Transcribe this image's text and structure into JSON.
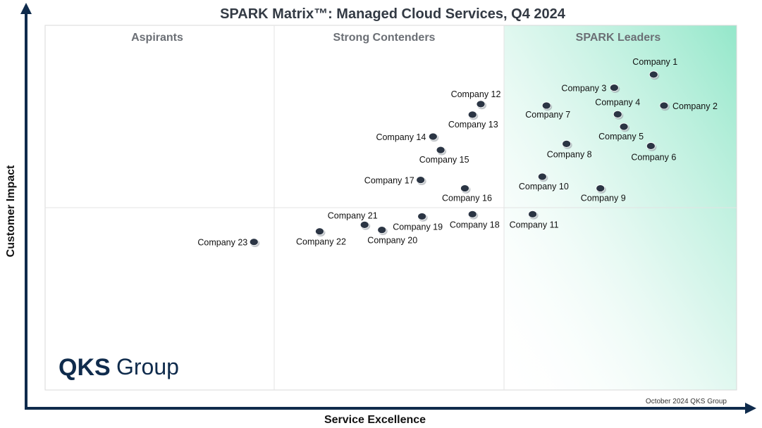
{
  "chart_data": {
    "type": "scatter",
    "title": "SPARK Matrix™: Managed Cloud Services, Q4 2024",
    "xlabel": "Service Excellence",
    "ylabel": "Customer Impact",
    "xlim": [
      0,
      100
    ],
    "ylim": [
      0,
      100
    ],
    "grid": false,
    "quadrants": [
      "Aspirants",
      "Strong Contenders",
      "SPARK Leaders"
    ],
    "points": [
      {
        "label": "Company 1",
        "x": 88.0,
        "y": 86.5
      },
      {
        "label": "Company 2",
        "x": 89.5,
        "y": 78.0
      },
      {
        "label": "Company 3",
        "x": 82.3,
        "y": 82.9
      },
      {
        "label": "Company 4",
        "x": 82.8,
        "y": 75.6
      },
      {
        "label": "Company 5",
        "x": 83.7,
        "y": 72.2
      },
      {
        "label": "Company 6",
        "x": 87.6,
        "y": 66.9
      },
      {
        "label": "Company 7",
        "x": 72.5,
        "y": 78.0
      },
      {
        "label": "Company 8",
        "x": 75.4,
        "y": 67.5
      },
      {
        "label": "Company 9",
        "x": 80.3,
        "y": 55.3
      },
      {
        "label": "Company 10",
        "x": 71.9,
        "y": 58.5
      },
      {
        "label": "Company 11",
        "x": 70.5,
        "y": 48.2
      },
      {
        "label": "Company 12",
        "x": 63.0,
        "y": 78.4
      },
      {
        "label": "Company 13",
        "x": 61.8,
        "y": 75.5
      },
      {
        "label": "Company 14",
        "x": 56.1,
        "y": 69.5
      },
      {
        "label": "Company 15",
        "x": 57.2,
        "y": 65.8
      },
      {
        "label": "Company 16",
        "x": 60.7,
        "y": 55.3
      },
      {
        "label": "Company 17",
        "x": 54.3,
        "y": 57.6
      },
      {
        "label": "Company 18",
        "x": 61.8,
        "y": 48.2
      },
      {
        "label": "Company 19",
        "x": 54.5,
        "y": 47.6
      },
      {
        "label": "Company 20",
        "x": 48.7,
        "y": 43.9
      },
      {
        "label": "Company 21",
        "x": 46.2,
        "y": 45.3
      },
      {
        "label": "Company 22",
        "x": 39.7,
        "y": 43.5
      },
      {
        "label": "Company 23",
        "x": 30.2,
        "y": 40.6
      }
    ]
  },
  "logo": {
    "bold": "QKS",
    "regular": "Group"
  },
  "footer": "October 2024 QKS Group",
  "colors": {
    "point": "#2b3544",
    "leaders_gradient": "#8ee6c7",
    "axis": "#0f2b4c",
    "frame": "#d9d9d9"
  }
}
